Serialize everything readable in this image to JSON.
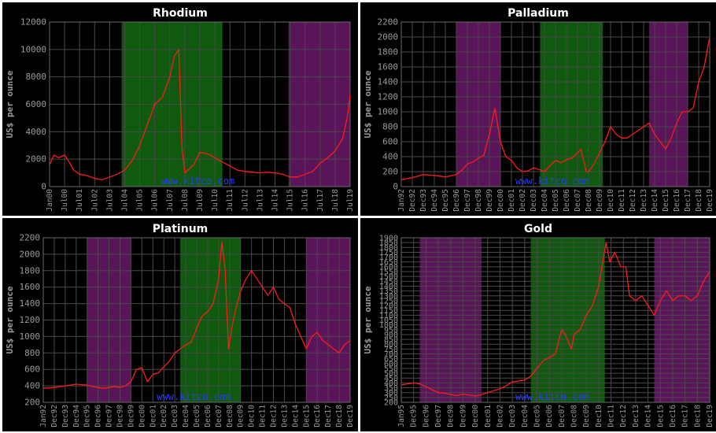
{
  "colors": {
    "background": "#000000",
    "grid": "#4a4a4a",
    "green_band": "#0f5a0f",
    "purple_band": "#5a145a",
    "line": "#ff1a1a",
    "text": "#9a9a9a",
    "title": "#ffffff",
    "watermark": "#2a3cff"
  },
  "chart_data": [
    {
      "type": "line",
      "title": "Rhodium",
      "ylabel": "US$ per ounce",
      "watermark": "www.kitco.com",
      "ylim": [
        0,
        12000
      ],
      "yticks": [
        0,
        2000,
        4000,
        6000,
        8000,
        10000,
        12000
      ],
      "xticks": [
        "Jan00",
        "Jul00",
        "Jul01",
        "Jul02",
        "Jul03",
        "Jul04",
        "Jul05",
        "Jul06",
        "Jul07",
        "Jul08",
        "Jul09",
        "Jul10",
        "Jul11",
        "Jul12",
        "Jul13",
        "Jul14",
        "Jul15",
        "Jul16",
        "Jul17",
        "Jul18",
        "Jul19"
      ],
      "xlim": [
        2000.0,
        2020.0
      ],
      "bands": [
        {
          "color": "green",
          "from": 2004.8,
          "to": 2011.5
        },
        {
          "color": "purple",
          "from": 2015.9,
          "to": 2020.0
        }
      ],
      "series": [
        {
          "x": [
            2000.0,
            2000.3,
            2000.6,
            2001.0,
            2001.3,
            2001.6,
            2002.0,
            2002.5,
            2003.0,
            2003.5,
            2004.0,
            2004.5,
            2005.0,
            2005.5,
            2006.0,
            2006.5,
            2007.0,
            2007.5,
            2008.0,
            2008.3,
            2008.6,
            2008.8,
            2009.0,
            2009.3,
            2009.6,
            2010.0,
            2010.5,
            2011.0,
            2011.5,
            2012.0,
            2012.5,
            2013.0,
            2013.5,
            2014.0,
            2014.5,
            2015.0,
            2015.5,
            2016.0,
            2016.5,
            2017.0,
            2017.5,
            2018.0,
            2018.5,
            2019.0,
            2019.5,
            2019.8,
            2020.0
          ],
          "values": [
            1600,
            2300,
            2100,
            2300,
            1800,
            1200,
            900,
            800,
            600,
            500,
            700,
            900,
            1200,
            1900,
            3000,
            4500,
            6000,
            6500,
            8000,
            9500,
            10000,
            3000,
            1000,
            1300,
            1600,
            2500,
            2400,
            2100,
            1800,
            1500,
            1200,
            1100,
            1050,
            1000,
            1050,
            1000,
            900,
            700,
            700,
            900,
            1100,
            1700,
            2100,
            2600,
            3500,
            5000,
            6700
          ]
        }
      ]
    },
    {
      "type": "line",
      "title": "Palladium",
      "ylabel": "US$ per ounce",
      "watermark": "www.kitco.com",
      "ylim": [
        0,
        2200
      ],
      "yticks": [
        0,
        200,
        400,
        600,
        800,
        1000,
        1200,
        1400,
        1600,
        1800,
        2000,
        2200
      ],
      "xticks": [
        "Jan92",
        "Dec92",
        "Dec93",
        "Dec94",
        "Dec95",
        "Dec96",
        "Dec97",
        "Dec98",
        "Dec99",
        "Dec00",
        "Dec01",
        "Dec02",
        "Dec03",
        "Dec04",
        "Dec05",
        "Dec06",
        "Dec07",
        "Dec08",
        "Dec09",
        "Dec10",
        "Dec11",
        "Dec12",
        "Dec13",
        "Dec14",
        "Dec15",
        "Dec16",
        "Dec17",
        "Dec18",
        "Dec19"
      ],
      "xlim": [
        1992.0,
        2020.0
      ],
      "bands": [
        {
          "color": "purple",
          "from": 1997.0,
          "to": 2001.0
        },
        {
          "color": "green",
          "from": 2004.6,
          "to": 2010.3
        },
        {
          "color": "purple",
          "from": 2014.5,
          "to": 2018.0
        }
      ],
      "series": [
        {
          "x": [
            1992.0,
            1993.0,
            1994.0,
            1995.0,
            1996.0,
            1997.0,
            1997.5,
            1998.0,
            1998.5,
            1999.0,
            1999.5,
            2000.0,
            2000.5,
            2001.0,
            2001.5,
            2002.0,
            2002.5,
            2003.0,
            2003.5,
            2004.0,
            2004.5,
            2005.0,
            2005.5,
            2006.0,
            2006.5,
            2007.0,
            2007.5,
            2008.0,
            2008.3,
            2008.8,
            2009.0,
            2009.5,
            2010.0,
            2010.5,
            2011.0,
            2011.5,
            2012.0,
            2012.5,
            2013.0,
            2013.5,
            2014.0,
            2014.5,
            2015.0,
            2015.5,
            2016.0,
            2016.5,
            2017.0,
            2017.5,
            2018.0,
            2018.5,
            2019.0,
            2019.5,
            2020.0
          ],
          "values": [
            90,
            120,
            160,
            150,
            130,
            160,
            220,
            300,
            330,
            380,
            420,
            700,
            1050,
            600,
            400,
            350,
            250,
            200,
            210,
            250,
            230,
            200,
            280,
            350,
            320,
            360,
            380,
            450,
            500,
            200,
            200,
            300,
            450,
            600,
            800,
            700,
            650,
            650,
            700,
            750,
            800,
            850,
            700,
            600,
            500,
            650,
            850,
            1000,
            1000,
            1050,
            1400,
            1600,
            2000
          ]
        }
      ]
    },
    {
      "type": "line",
      "title": "Platinum",
      "ylabel": "US$ per ounce",
      "watermark": "www.kitco.com",
      "ylim": [
        200,
        2200
      ],
      "yticks": [
        200,
        400,
        600,
        800,
        1000,
        1200,
        1400,
        1600,
        1800,
        2000,
        2200
      ],
      "xticks": [
        "Jan92",
        "Dec92",
        "Dec93",
        "Dec94",
        "Dec95",
        "Dec96",
        "Dec97",
        "Dec98",
        "Dec99",
        "Dec00",
        "Dec01",
        "Dec02",
        "Dec03",
        "Dec04",
        "Dec05",
        "Dec06",
        "Dec07",
        "Dec08",
        "Dec09",
        "Dec10",
        "Dec11",
        "Dec12",
        "Dec13",
        "Dec14",
        "Dec15",
        "Dec16",
        "Dec17",
        "Dec18",
        "Dec19"
      ],
      "xlim": [
        1992.0,
        2020.0
      ],
      "bands": [
        {
          "color": "purple",
          "from": 1996.0,
          "to": 2000.0
        },
        {
          "color": "green",
          "from": 2004.5,
          "to": 2010.0
        },
        {
          "color": "purple",
          "from": 2016.0,
          "to": 2020.0
        }
      ],
      "series": [
        {
          "x": [
            1992.0,
            1993.0,
            1994.0,
            1995.0,
            1996.0,
            1996.5,
            1997.0,
            1997.5,
            1998.0,
            1998.5,
            1999.0,
            1999.5,
            2000.0,
            2000.5,
            2001.0,
            2001.5,
            2002.0,
            2002.5,
            2003.0,
            2003.5,
            2004.0,
            2004.5,
            2005.0,
            2005.5,
            2006.0,
            2006.5,
            2007.0,
            2007.5,
            2008.0,
            2008.3,
            2008.6,
            2008.9,
            2009.2,
            2009.5,
            2010.0,
            2010.5,
            2011.0,
            2011.5,
            2012.0,
            2012.5,
            2013.0,
            2013.5,
            2014.0,
            2014.5,
            2015.0,
            2015.5,
            2016.0,
            2016.5,
            2017.0,
            2017.5,
            2018.0,
            2018.5,
            2019.0,
            2019.5,
            2020.0
          ],
          "values": [
            370,
            380,
            400,
            420,
            410,
            390,
            380,
            370,
            380,
            390,
            380,
            400,
            450,
            600,
            620,
            450,
            540,
            560,
            630,
            700,
            800,
            850,
            900,
            930,
            1100,
            1250,
            1300,
            1400,
            1700,
            2150,
            1800,
            850,
            1100,
            1300,
            1550,
            1700,
            1800,
            1700,
            1600,
            1500,
            1600,
            1450,
            1400,
            1350,
            1150,
            1000,
            850,
            1000,
            1050,
            950,
            900,
            850,
            800,
            900,
            950
          ]
        }
      ]
    },
    {
      "type": "line",
      "title": "Gold",
      "ylabel": "US$ per ounce",
      "watermark": "www.kitco.com",
      "ylim": [
        200,
        1900
      ],
      "yticks": [
        200,
        250,
        300,
        350,
        400,
        450,
        500,
        550,
        600,
        650,
        700,
        750,
        800,
        850,
        900,
        950,
        1000,
        1050,
        1100,
        1150,
        1200,
        1250,
        1300,
        1350,
        1400,
        1450,
        1500,
        1550,
        1600,
        1650,
        1700,
        1750,
        1800,
        1850,
        1900
      ],
      "xticks": [
        "Jan95",
        "Dec95",
        "Dec96",
        "Dec97",
        "Dec98",
        "Dec99",
        "Dec00",
        "Dec01",
        "Dec02",
        "Dec03",
        "Dec04",
        "Dec05",
        "Dec06",
        "Dec07",
        "Dec08",
        "Dec09",
        "Dec10",
        "Dec11",
        "Dec12",
        "Dec13",
        "Dec14",
        "Dec15",
        "Dec16",
        "Dec17",
        "Dec18",
        "Dec19"
      ],
      "xlim": [
        1995.0,
        2020.0
      ],
      "bands": [
        {
          "color": "purple",
          "from": 1996.5,
          "to": 2001.5
        },
        {
          "color": "green",
          "from": 2005.5,
          "to": 2011.5
        },
        {
          "color": "purple",
          "from": 2015.5,
          "to": 2020.0
        }
      ],
      "series": [
        {
          "x": [
            1995.0,
            1996.0,
            1996.5,
            1997.0,
            1997.5,
            1998.0,
            1998.5,
            1999.0,
            1999.5,
            2000.0,
            2000.5,
            2001.0,
            2001.5,
            2002.0,
            2002.5,
            2003.0,
            2003.5,
            2004.0,
            2004.5,
            2005.0,
            2005.5,
            2006.0,
            2006.5,
            2007.0,
            2007.5,
            2008.0,
            2008.3,
            2008.8,
            2009.0,
            2009.5,
            2010.0,
            2010.5,
            2011.0,
            2011.6,
            2011.9,
            2012.3,
            2012.8,
            2013.2,
            2013.5,
            2014.0,
            2014.5,
            2015.0,
            2015.5,
            2016.0,
            2016.5,
            2017.0,
            2017.5,
            2018.0,
            2018.5,
            2019.0,
            2019.5,
            2020.0
          ],
          "values": [
            380,
            400,
            390,
            360,
            330,
            300,
            295,
            280,
            270,
            285,
            275,
            265,
            280,
            300,
            320,
            340,
            370,
            410,
            420,
            430,
            470,
            550,
            630,
            660,
            700,
            950,
            900,
            750,
            900,
            950,
            1100,
            1200,
            1400,
            1850,
            1650,
            1750,
            1600,
            1600,
            1300,
            1250,
            1300,
            1200,
            1100,
            1250,
            1350,
            1250,
            1300,
            1300,
            1250,
            1300,
            1450,
            1550
          ]
        }
      ]
    }
  ]
}
